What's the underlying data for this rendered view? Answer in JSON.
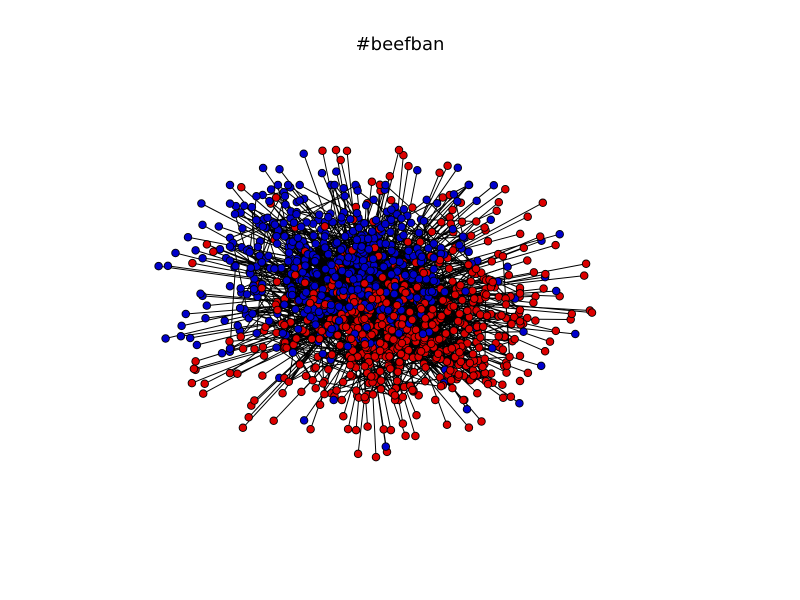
{
  "title": "#beefban",
  "colors": {
    "group_a_node": "#0000cc",
    "group_b_node": "#dd0000",
    "node_stroke": "#000000",
    "edge": "#000000",
    "background": "#ffffff"
  }
}
